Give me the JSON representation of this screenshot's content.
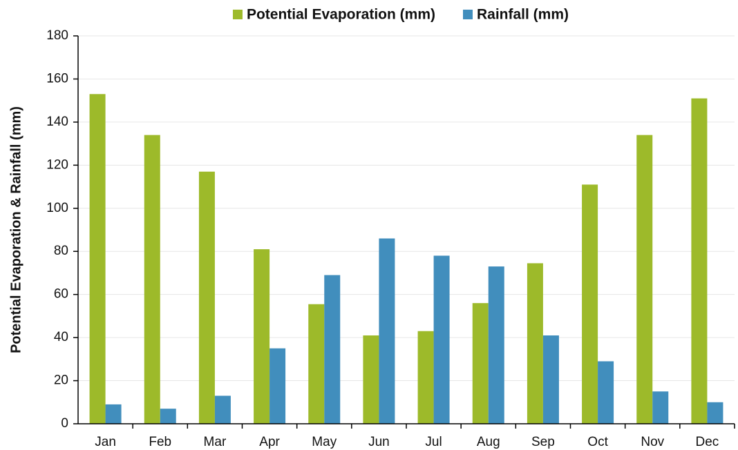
{
  "chart_data": {
    "type": "bar",
    "y_label": "Potential Evaporation & Rainfall (mm)",
    "categories": [
      "Jan",
      "Feb",
      "Mar",
      "Apr",
      "May",
      "Jun",
      "Jul",
      "Aug",
      "Sep",
      "Oct",
      "Nov",
      "Dec"
    ],
    "series": [
      {
        "name": "Potential Evaporation (mm)",
        "color": "#9dba2a",
        "values": [
          153,
          134,
          117,
          81,
          55.5,
          41,
          43,
          56,
          74.5,
          111,
          134,
          151
        ]
      },
      {
        "name": "Rainfall (mm)",
        "color": "#418ebd",
        "values": [
          9,
          7,
          13,
          35,
          69,
          86,
          78,
          73,
          41,
          29,
          15,
          10
        ]
      }
    ],
    "ylim": [
      0,
      180
    ],
    "yticks": [
      0,
      20,
      40,
      60,
      80,
      100,
      120,
      140,
      160,
      180
    ],
    "grid": true,
    "legend": "top"
  }
}
